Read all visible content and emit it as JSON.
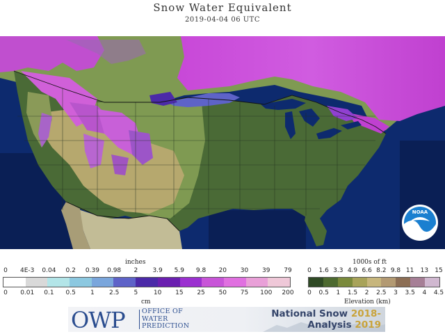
{
  "title": "Snow Water Equivalent",
  "subtitle": "2019-04-04 06 UTC",
  "swe_scale": {
    "top_unit": "inches",
    "bottom_unit": "cm",
    "inch_labels": [
      "0",
      "4E-3",
      "0.04",
      "0.2",
      "0.39",
      "0.98",
      "2",
      "3.9",
      "5.9",
      "9.8",
      "20",
      "30",
      "39",
      "79"
    ],
    "cm_labels": [
      "0",
      "0.01",
      "0.1",
      "0.5",
      "1",
      "2.5",
      "5",
      "10",
      "15",
      "25",
      "50",
      "75",
      "100",
      "200"
    ],
    "colors": [
      "#ffffff",
      "#d9d9d9",
      "#b3e5e8",
      "#8cc8e0",
      "#7aa6dc",
      "#5e63c8",
      "#4b2aa8",
      "#6a1fb0",
      "#9b30d0",
      "#c855d8",
      "#e070e0",
      "#e9a0d8",
      "#efc8d8"
    ]
  },
  "elev_scale": {
    "top_unit": "1000s of ft",
    "bottom_unit": "Elevation (km)",
    "ft_labels": [
      "0",
      "1.6",
      "3.3",
      "4.9",
      "6.6",
      "8.2",
      "9.8",
      "11",
      "13",
      "15"
    ],
    "km_labels": [
      "0",
      "0.5",
      "1",
      "1.5",
      "2",
      "2.5",
      "3",
      "3.5",
      "4",
      "4.5"
    ],
    "colors": [
      "#2f4a25",
      "#4d6a30",
      "#7a8a3c",
      "#a8a35a",
      "#c7b67d",
      "#b39a73",
      "#8c6e55",
      "#a67f96",
      "#d0b8d0"
    ]
  },
  "map_colors": {
    "ocean": "#0d2a6e",
    "ocean_deep": "#0a1f55",
    "lowland": "#4a6a36",
    "plains": "#7f9a52",
    "highland": "#b6a86e",
    "mexico": "#c2bc96",
    "snow_heavy": "#d040d8",
    "snow_mid": "#9040d0",
    "snow_light": "#5e63c8"
  },
  "logo": {
    "noaa": "NOAA",
    "owp_letters": "OWP",
    "owp_name": [
      "OFFICE OF",
      "WATER",
      "PREDICTION"
    ],
    "banner_line1": "National Snow",
    "banner_year1": "2018-",
    "banner_line2": "Analysis",
    "banner_year2": "2019"
  }
}
